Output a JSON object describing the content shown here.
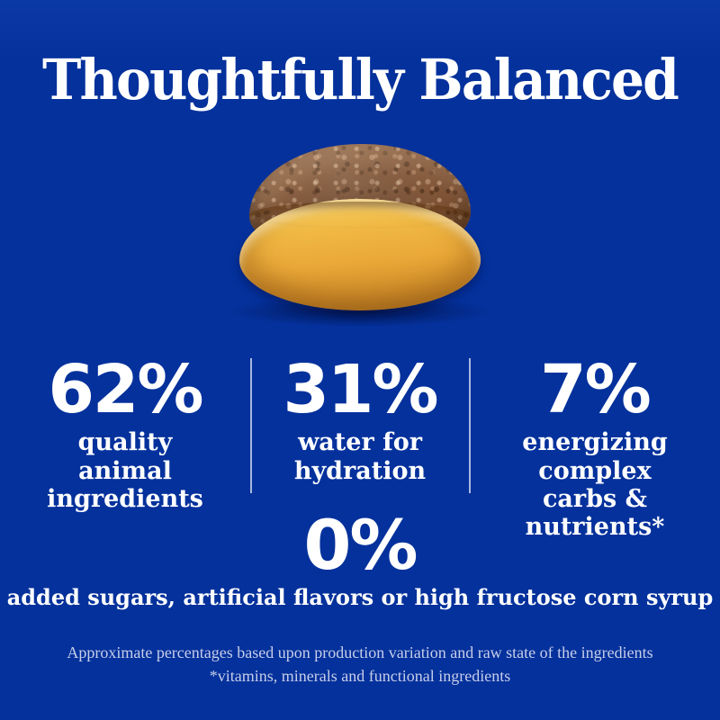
{
  "brand_colors": {
    "background_blue": "#04319c",
    "text_white": "#ffffff",
    "bowl_gold": "#f0b843",
    "food_brown": "#7e5336",
    "divider_light_blue": "#a8b8e0",
    "footnote_text": "#c7cee9"
  },
  "headline": "Thoughtfully Balanced",
  "illustration": {
    "name": "bowl-of-wet-pet-food"
  },
  "stats": [
    {
      "value": "62%",
      "label": "quality animal ingredients"
    },
    {
      "value": "31%",
      "label": "water for hydration"
    },
    {
      "value": "7%",
      "label": "energizing complex carbs & nutrients*"
    }
  ],
  "zero_stat": {
    "value": "0%",
    "label": "added sugars, artificial flavors or high fructose corn syrup"
  },
  "footnote": {
    "line1": "Approximate percentages based upon production variation and raw state of the ingredients",
    "line2": "*vitamins, minerals and functional ingredients"
  }
}
